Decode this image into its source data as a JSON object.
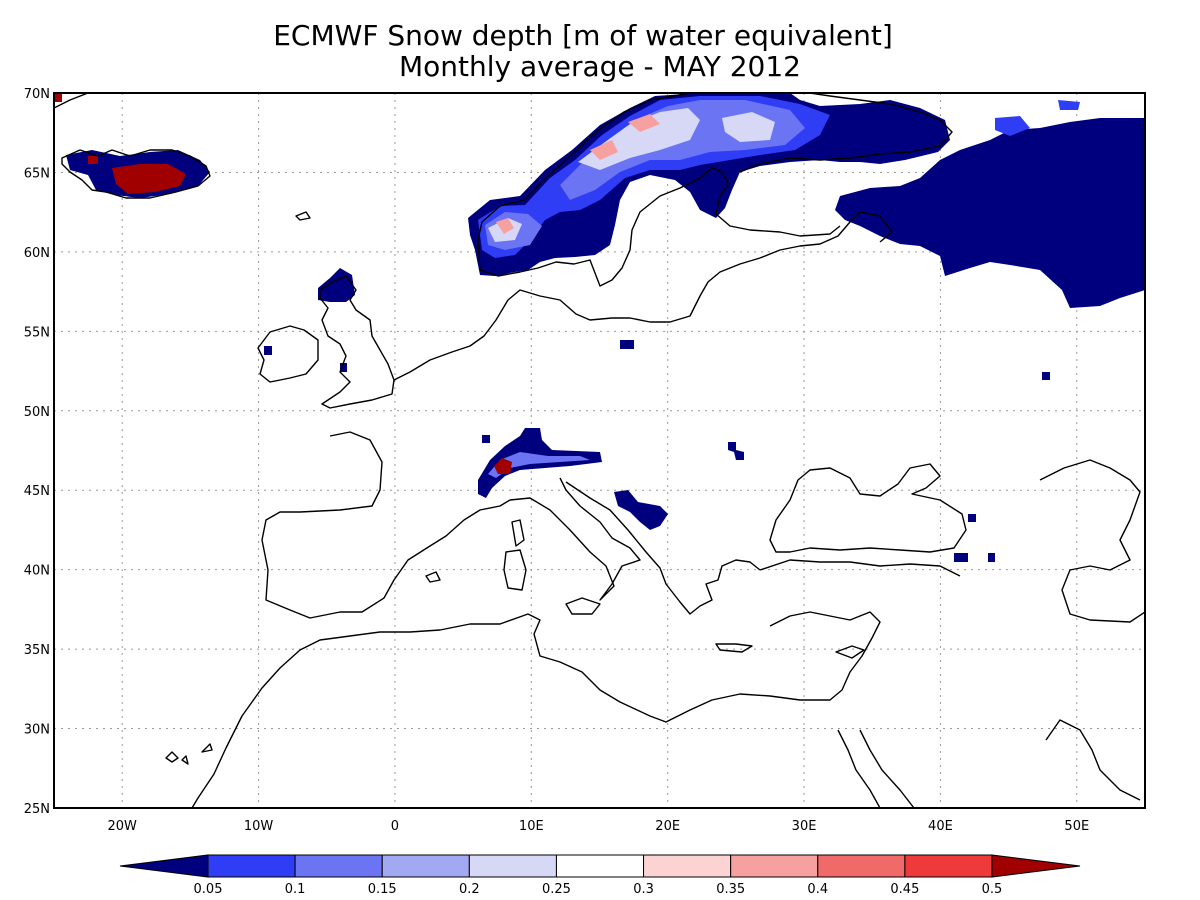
{
  "title": {
    "line1": "ECMWF Snow depth [m of water equivalent]",
    "line2": "Monthly average - MAY 2012"
  },
  "map": {
    "lon_range": [
      -25,
      55
    ],
    "lat_range": [
      25,
      70
    ],
    "lat_ticks": [
      "70N",
      "65N",
      "60N",
      "55N",
      "50N",
      "45N",
      "40N",
      "35N",
      "30N",
      "25N"
    ],
    "lon_ticks": [
      "20W",
      "10W",
      "0",
      "10E",
      "20E",
      "30E",
      "40E",
      "50E"
    ],
    "grid": "dotted"
  },
  "colorbar": {
    "levels": [
      "0.05",
      "0.1",
      "0.15",
      "0.2",
      "0.25",
      "0.3",
      "0.35",
      "0.4",
      "0.45",
      "0.5"
    ],
    "colors": [
      "#00007f",
      "#2f3df5",
      "#6b74f2",
      "#a3a8f2",
      "#d6d8f6",
      "#ffffff",
      "#fcd3d3",
      "#f7a0a0",
      "#f06a6a",
      "#ee3a3a",
      "#a00000"
    ]
  },
  "snow_colors": {
    "lowest": "#00007f",
    "blue1": "#2f3df5",
    "blue2": "#6b74f2",
    "blue3": "#a3a8f2",
    "blue4": "#d6d8f6",
    "red1": "#fcd3d3",
    "red2": "#f7a0a0",
    "red3": "#f06a6a",
    "red4": "#ee3a3a",
    "highest": "#a00000"
  }
}
